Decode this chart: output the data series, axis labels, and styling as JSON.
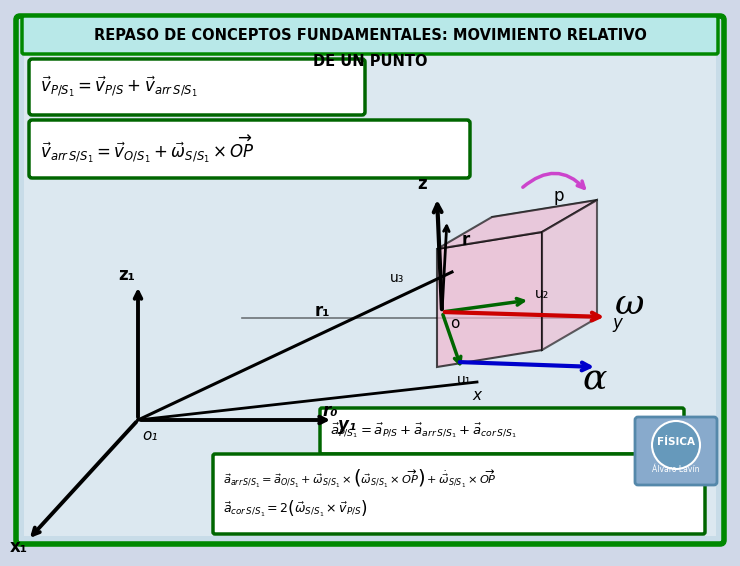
{
  "title_line1": "REPASO DE CONCEPTOS FUNDAMENTALES: MOVIMIENTO RELATIVO",
  "title_line2": "DE UN PUNTO",
  "bg_outer": "#c8e8c8",
  "bg_inner": "#e8f0f8",
  "title_bg": "#b8e8e8",
  "formula_bg": "#ffffff",
  "formula_border": "#006600",
  "outer_border": "#008800",
  "inner_border": "#006600",
  "box_color": "#f0b8d0",
  "arrow_red": "#cc0000",
  "arrow_blue": "#0000cc",
  "arrow_green": "#006600",
  "arrow_pink": "#cc44cc",
  "label_z": "z",
  "label_p": "p",
  "label_r": "r",
  "label_u1": "u₁",
  "label_u2": "u₂",
  "label_u3": "u₃",
  "label_o": "o",
  "label_y": "y",
  "label_omega": "ω",
  "label_alpha": "α",
  "label_z1": "z₁",
  "label_o1": "o₁",
  "label_y1": "y₁",
  "label_x1": "x₁",
  "label_r1": "r₁",
  "label_ro": "r₀",
  "label_x": "x"
}
